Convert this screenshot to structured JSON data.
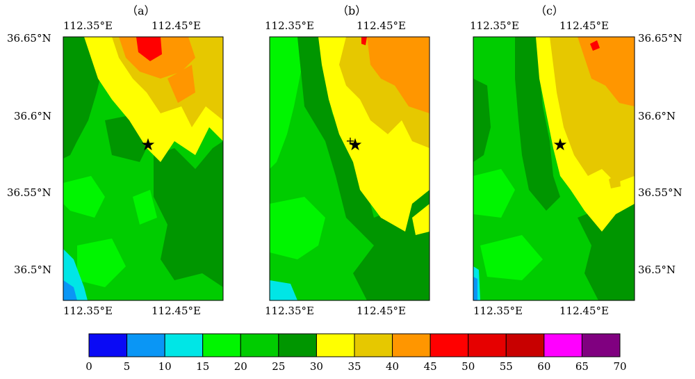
{
  "chart_data": {
    "type": "heatmap",
    "panels": [
      {
        "caption": "（a）",
        "x_ticks": [
          "112.35°E",
          "112.45°E"
        ],
        "y_ticks": [
          "36.65°N",
          "36.6°N",
          "36.55°N",
          "36.5°N"
        ],
        "y_tick_side": "left",
        "marker": {
          "symbol": "★",
          "lon": 112.42,
          "lat": 36.58
        }
      },
      {
        "caption": "（b）",
        "x_ticks": [
          "112.35°E",
          "112.45°E"
        ],
        "y_ticks": [],
        "marker": {
          "symbol": "★",
          "lon": 112.42,
          "lat": 36.58,
          "plus": true
        }
      },
      {
        "caption": "（c）",
        "x_ticks": [
          "112.35°E",
          "112.45°E"
        ],
        "y_ticks": [
          "36.65°N",
          "36.6°N",
          "36.55°N",
          "36.5°N"
        ],
        "y_tick_side": "right",
        "marker": {
          "symbol": "★",
          "lon": 112.42,
          "lat": 36.58
        }
      }
    ],
    "xlim": [
      112.33,
      112.5
    ],
    "ylim": [
      36.48,
      36.65
    ],
    "colorbar": {
      "bounds": [
        0,
        5,
        10,
        15,
        20,
        25,
        30,
        35,
        40,
        45,
        50,
        55,
        60,
        65,
        70
      ],
      "tick_labels": [
        "0",
        "5",
        "10",
        "15",
        "20",
        "25",
        "30",
        "35",
        "40",
        "45",
        "50",
        "55",
        "60",
        "65",
        "70"
      ],
      "colors": [
        "#0a0af5",
        "#0a96f5",
        "#00e6e6",
        "#00f500",
        "#00cc00",
        "#009600",
        "#ffff00",
        "#e6c800",
        "#ff9600",
        "#ff0000",
        "#e60000",
        "#c80000",
        "#ff00ff",
        "#800080"
      ]
    }
  }
}
